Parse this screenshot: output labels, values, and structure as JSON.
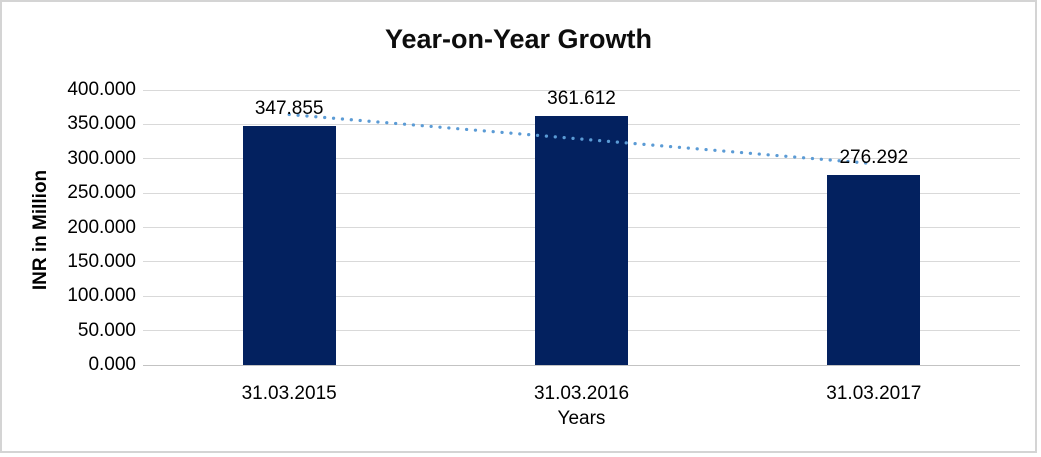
{
  "window": {
    "background": "#ffffff",
    "border_color": "#d4d4d4"
  },
  "chart_data": {
    "type": "bar",
    "title": "Year-on-Year Growth",
    "categories": [
      "31.03.2015",
      "31.03.2016",
      "31.03.2017"
    ],
    "values": [
      347.855,
      361.612,
      276.292
    ],
    "data_labels": [
      "347.855",
      "361.612",
      "276.292"
    ],
    "xlabel": "Years",
    "ylabel": "INR in Million",
    "ylim": [
      0,
      400
    ],
    "ytick_interval": 50,
    "ytick_labels": [
      "400.000",
      "350.000",
      "300.000",
      "250.000",
      "200.000",
      "150.000",
      "100.000",
      "50.000",
      "0.000"
    ],
    "grid": true,
    "legend": false,
    "series": [
      {
        "name": "INR in Million",
        "values": [
          347.855,
          361.612,
          276.292
        ],
        "color": "#03215F"
      }
    ],
    "trendline": {
      "type": "linear",
      "style": "dotted",
      "color": "#5B9BD5"
    },
    "colors": {
      "bar": "#03215F",
      "trendline": "#5B9BD5",
      "gridline": "#D9D9D9",
      "axis_line": "#C3C3C3",
      "text": "#000000",
      "title": "#0D0D0D"
    }
  }
}
